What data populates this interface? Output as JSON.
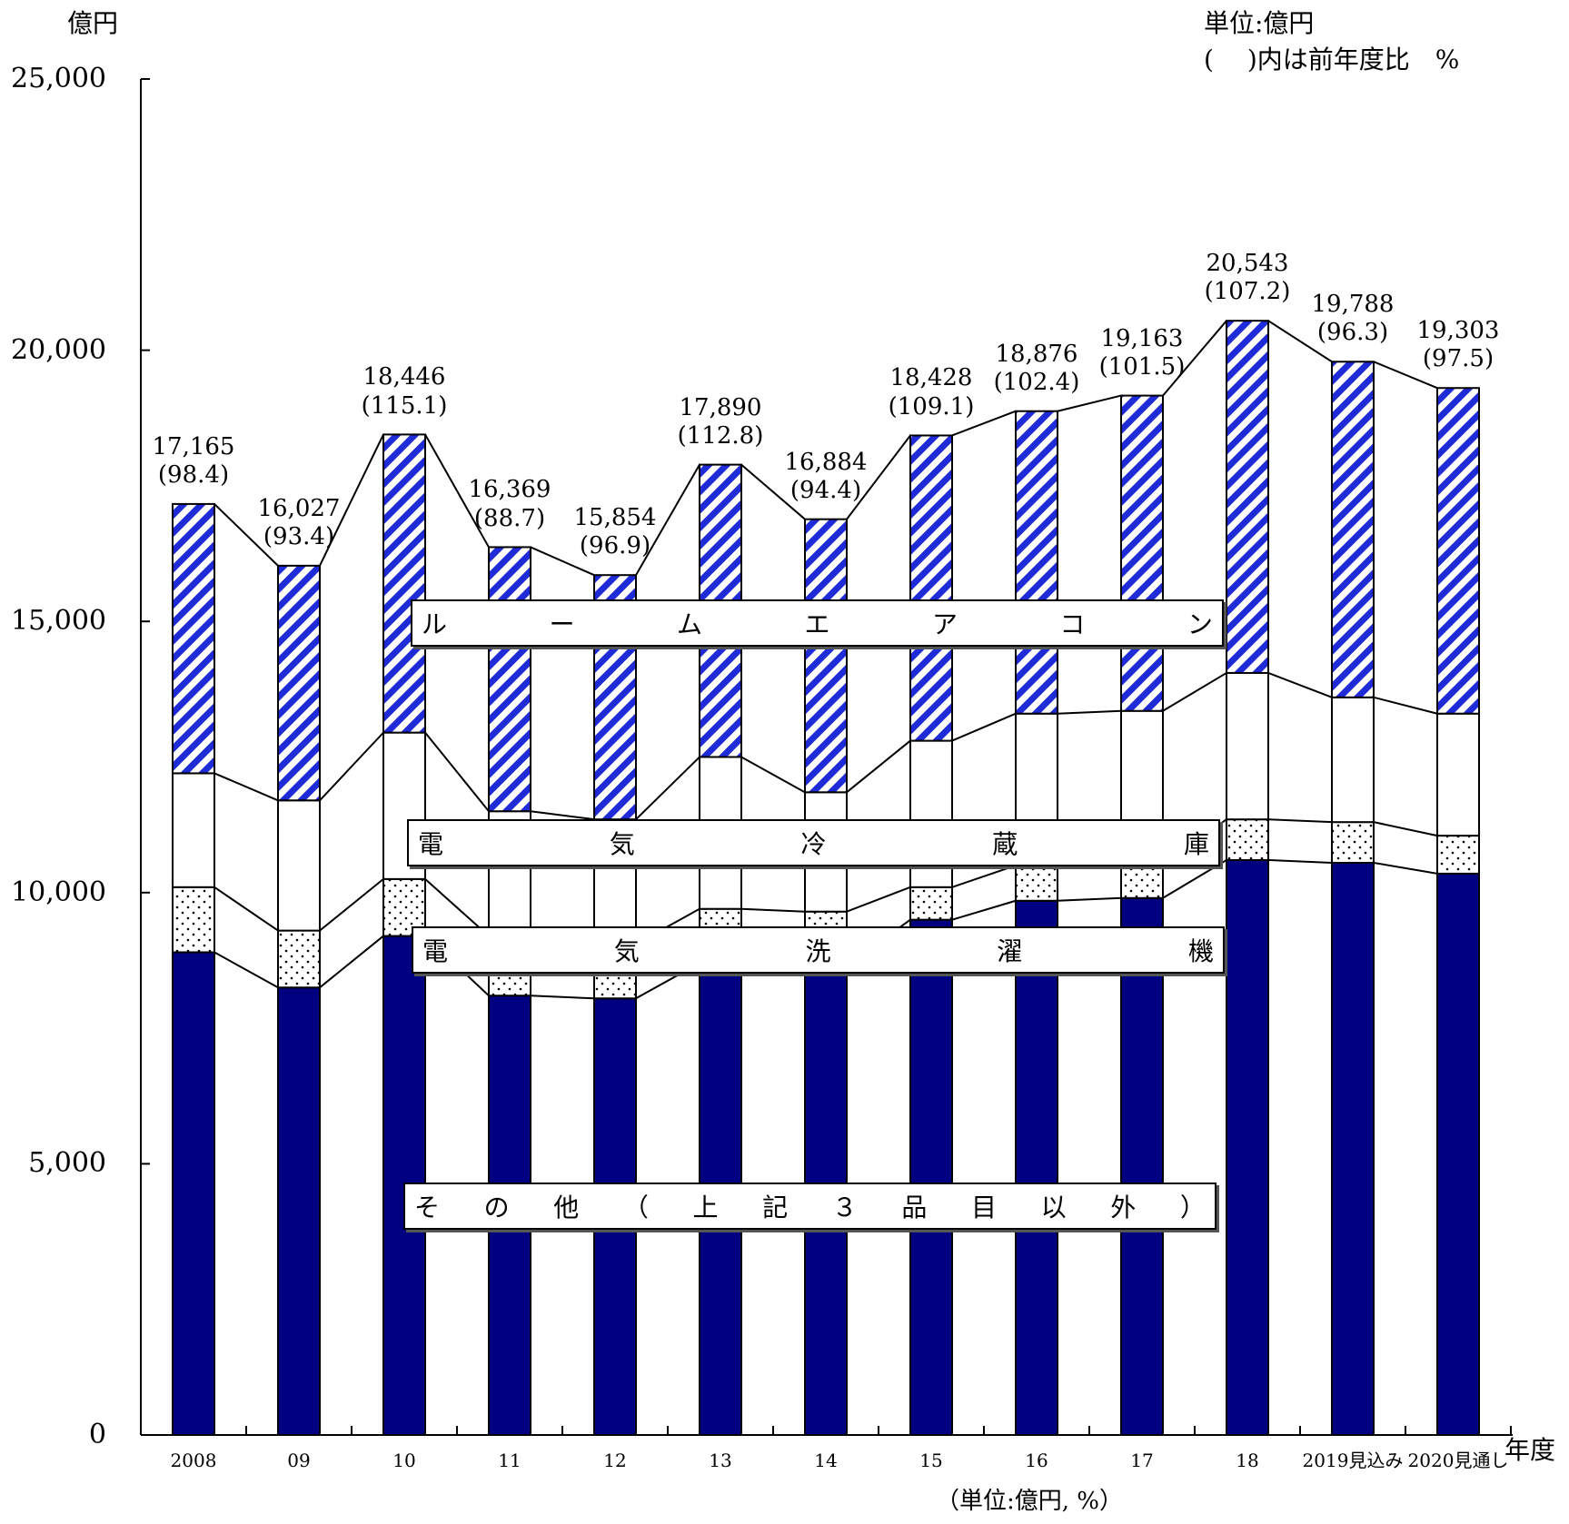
{
  "header": {
    "y_unit": "億円",
    "unit_note_1": "単位:億円",
    "unit_note_2": "(　 )内は前年度比　%",
    "x_unit": "年度",
    "footer_note": "（単位:億円, %）"
  },
  "colors": {
    "other": "#000080",
    "aircon_stripe": "#1f2bd6",
    "line": "#000000"
  },
  "chart_data": {
    "type": "bar",
    "stacked": true,
    "categories": [
      "2008",
      "09",
      "10",
      "11",
      "12",
      "13",
      "14",
      "15",
      "16",
      "17",
      "18",
      "2019見込み",
      "2020見通し"
    ],
    "ylim": [
      0,
      25000
    ],
    "yticks": [
      0,
      5000,
      10000,
      15000,
      20000,
      25000
    ],
    "ytick_labels": [
      "0",
      "5,000",
      "10,000",
      "15,000",
      "20,000",
      "25,000"
    ],
    "series": [
      {
        "name": "その他（上記３品目以外）",
        "label_chars": [
          "そ",
          "の",
          "他",
          "（",
          "上",
          "記",
          "３",
          "品",
          "目",
          "以",
          "外",
          "）"
        ],
        "values": [
          8900,
          8250,
          9200,
          8100,
          8050,
          8700,
          8650,
          9500,
          9850,
          9900,
          10600,
          10550,
          10350
        ]
      },
      {
        "name": "電気洗濯機",
        "label_chars": [
          "電",
          "気",
          "洗",
          "濯",
          "機"
        ],
        "values": [
          1200,
          1050,
          1050,
          1100,
          1000,
          1000,
          1000,
          600,
          650,
          600,
          750,
          750,
          700
        ]
      },
      {
        "name": "電気冷蔵庫",
        "label_chars": [
          "電",
          "気",
          "冷",
          "蔵",
          "庫"
        ],
        "values": [
          2100,
          2400,
          2700,
          2300,
          2300,
          2800,
          2200,
          2700,
          2800,
          2850,
          2700,
          2300,
          2250
        ]
      },
      {
        "name": "ルームエアコン",
        "label_chars": [
          "ル",
          "ー",
          "ム",
          "エ",
          "ア",
          "コ",
          "ン"
        ],
        "values": [
          4965,
          4327,
          5496,
          4869,
          4504,
          5390,
          5034,
          5628,
          5576,
          5813,
          6493,
          6188,
          6003
        ]
      }
    ],
    "totals": [
      17165,
      16027,
      18446,
      16369,
      15854,
      17890,
      16884,
      18428,
      18876,
      19163,
      20543,
      19788,
      19303
    ],
    "total_labels": [
      "17,165",
      "16,027",
      "18,446",
      "16,369",
      "15,854",
      "17,890",
      "16,884",
      "18,428",
      "18,876",
      "19,163",
      "20,543",
      "19,788",
      "19,303"
    ],
    "yoy_labels": [
      "(98.4)",
      "(93.4)",
      "(115.1)",
      "(88.7)",
      "(96.9)",
      "(112.8)",
      "(94.4)",
      "(109.1)",
      "(102.4)",
      "(101.5)",
      "(107.2)",
      "(96.3)",
      "(97.5)"
    ]
  }
}
